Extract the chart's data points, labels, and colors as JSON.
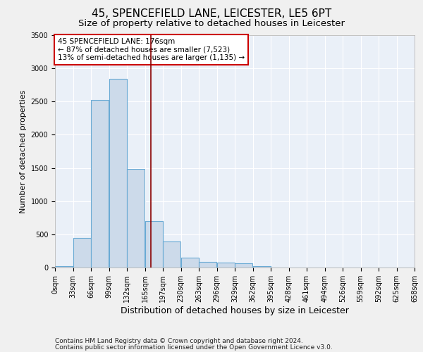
{
  "title1": "45, SPENCEFIELD LANE, LEICESTER, LE5 6PT",
  "title2": "Size of property relative to detached houses in Leicester",
  "xlabel": "Distribution of detached houses by size in Leicester",
  "ylabel": "Number of detached properties",
  "bar_edges": [
    0,
    33,
    66,
    99,
    132,
    165,
    198,
    231,
    264,
    297,
    330,
    363,
    396,
    429,
    462,
    495,
    528,
    561,
    594,
    627,
    660
  ],
  "bar_heights": [
    20,
    450,
    2520,
    2840,
    1490,
    700,
    390,
    150,
    80,
    70,
    60,
    20,
    0,
    0,
    0,
    0,
    0,
    0,
    0,
    0
  ],
  "bar_color": "#ccdaea",
  "bar_edgecolor": "#6aaad4",
  "property_size": 176,
  "vline_color": "#8b0000",
  "annotation_text": "45 SPENCEFIELD LANE: 176sqm\n← 87% of detached houses are smaller (7,523)\n13% of semi-detached houses are larger (1,135) →",
  "annotation_box_color": "#cc0000",
  "ylim": [
    0,
    3500
  ],
  "yticks": [
    0,
    500,
    1000,
    1500,
    2000,
    2500,
    3000,
    3500
  ],
  "xtick_labels": [
    "0sqm",
    "33sqm",
    "66sqm",
    "99sqm",
    "132sqm",
    "165sqm",
    "197sqm",
    "230sqm",
    "263sqm",
    "296sqm",
    "329sqm",
    "362sqm",
    "395sqm",
    "428sqm",
    "461sqm",
    "494sqm",
    "526sqm",
    "559sqm",
    "592sqm",
    "625sqm",
    "658sqm"
  ],
  "footer1": "Contains HM Land Registry data © Crown copyright and database right 2024.",
  "footer2": "Contains public sector information licensed under the Open Government Licence v3.0.",
  "bg_color": "#eaf0f8",
  "grid_color": "#ffffff",
  "title1_fontsize": 11,
  "title2_fontsize": 9.5,
  "xlabel_fontsize": 9,
  "ylabel_fontsize": 8,
  "tick_fontsize": 7,
  "annotation_fontsize": 7.5,
  "footer_fontsize": 6.5
}
